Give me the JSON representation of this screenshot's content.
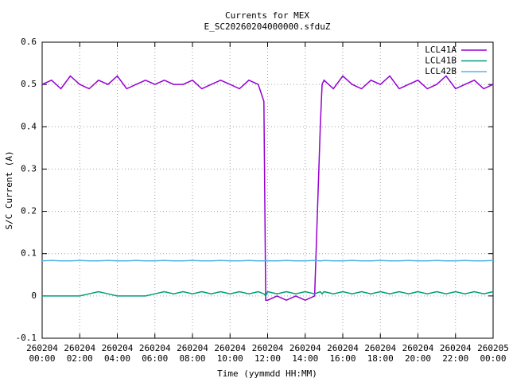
{
  "chart_data": {
    "type": "line",
    "title": "Currents for MEX",
    "subtitle": "E_SC20260204000000.sfduZ",
    "x_label": "Time (yymmdd HH:MM)",
    "y_label": "S/C Current (A)",
    "x": [
      0,
      0.5,
      1,
      1.5,
      2,
      2.5,
      3,
      3.5,
      4,
      4.5,
      5,
      5.5,
      6,
      6.5,
      7,
      7.5,
      8,
      8.5,
      9,
      9.5,
      10,
      10.5,
      11,
      11.5,
      11.8,
      11.9,
      12,
      12.5,
      13,
      13.5,
      14,
      14.5,
      14.8,
      14.9,
      15,
      15.5,
      16,
      16.5,
      17,
      17.5,
      18,
      18.5,
      19,
      19.5,
      20,
      20.5,
      21,
      21.5,
      22,
      22.5,
      23,
      23.5,
      24
    ],
    "series": [
      {
        "name": "LCL41A",
        "color": "#9400d3",
        "values": [
          0.5,
          0.51,
          0.49,
          0.52,
          0.5,
          0.49,
          0.51,
          0.5,
          0.52,
          0.49,
          0.5,
          0.51,
          0.5,
          0.51,
          0.5,
          0.5,
          0.51,
          0.49,
          0.5,
          0.51,
          0.5,
          0.49,
          0.51,
          0.5,
          0.46,
          -0.01,
          -0.01,
          0,
          -0.01,
          0,
          -0.01,
          0,
          0.4,
          0.5,
          0.51,
          0.49,
          0.52,
          0.5,
          0.49,
          0.51,
          0.5,
          0.52,
          0.49,
          0.5,
          0.51,
          0.49,
          0.5,
          0.52,
          0.49,
          0.5,
          0.51,
          0.49,
          0.5
        ]
      },
      {
        "name": "LCL41B",
        "color": "#009e73",
        "values": [
          0,
          0,
          0,
          0,
          0,
          0.005,
          0.01,
          0.005,
          0,
          0,
          0,
          0,
          0.005,
          0.01,
          0.005,
          0.01,
          0.005,
          0.01,
          0.005,
          0.01,
          0.005,
          0.01,
          0.005,
          0.01,
          0.005,
          0,
          0.01,
          0.005,
          0.01,
          0.005,
          0.01,
          0.005,
          0.01,
          0.005,
          0.01,
          0.005,
          0.01,
          0.005,
          0.01,
          0.005,
          0.01,
          0.005,
          0.01,
          0.005,
          0.01,
          0.005,
          0.01,
          0.005,
          0.01,
          0.005,
          0.01,
          0.005,
          0.01
        ]
      },
      {
        "name": "LCL42B",
        "color": "#56b4e9",
        "values": [
          0.083,
          0.084,
          0.083,
          0.083,
          0.084,
          0.083,
          0.083,
          0.084,
          0.083,
          0.083,
          0.084,
          0.083,
          0.083,
          0.084,
          0.083,
          0.083,
          0.084,
          0.083,
          0.083,
          0.084,
          0.083,
          0.083,
          0.084,
          0.083,
          0.083,
          0.084,
          0.083,
          0.083,
          0.084,
          0.083,
          0.083,
          0.084,
          0.083,
          0.083,
          0.084,
          0.083,
          0.083,
          0.084,
          0.083,
          0.083,
          0.084,
          0.083,
          0.083,
          0.084,
          0.083,
          0.083,
          0.084,
          0.083,
          0.083,
          0.084,
          0.083,
          0.083,
          0.084
        ]
      }
    ],
    "xlim": [
      0,
      24
    ],
    "xticks": [
      {
        "value": 0,
        "label": "260204\n00:00"
      },
      {
        "value": 2,
        "label": "260204\n02:00"
      },
      {
        "value": 4,
        "label": "260204\n04:00"
      },
      {
        "value": 6,
        "label": "260204\n06:00"
      },
      {
        "value": 8,
        "label": "260204\n08:00"
      },
      {
        "value": 10,
        "label": "260204\n10:00"
      },
      {
        "value": 12,
        "label": "260204\n12:00"
      },
      {
        "value": 14,
        "label": "260204\n14:00"
      },
      {
        "value": 16,
        "label": "260204\n16:00"
      },
      {
        "value": 18,
        "label": "260204\n18:00"
      },
      {
        "value": 20,
        "label": "260204\n20:00"
      },
      {
        "value": 22,
        "label": "260204\n22:00"
      },
      {
        "value": 24,
        "label": "260205\n00:00"
      }
    ],
    "ylim": [
      -0.1,
      0.6
    ],
    "yticks": [
      -0.1,
      0,
      0.1,
      0.2,
      0.3,
      0.4,
      0.5,
      0.6
    ],
    "grid": true,
    "legend": "top-right"
  }
}
